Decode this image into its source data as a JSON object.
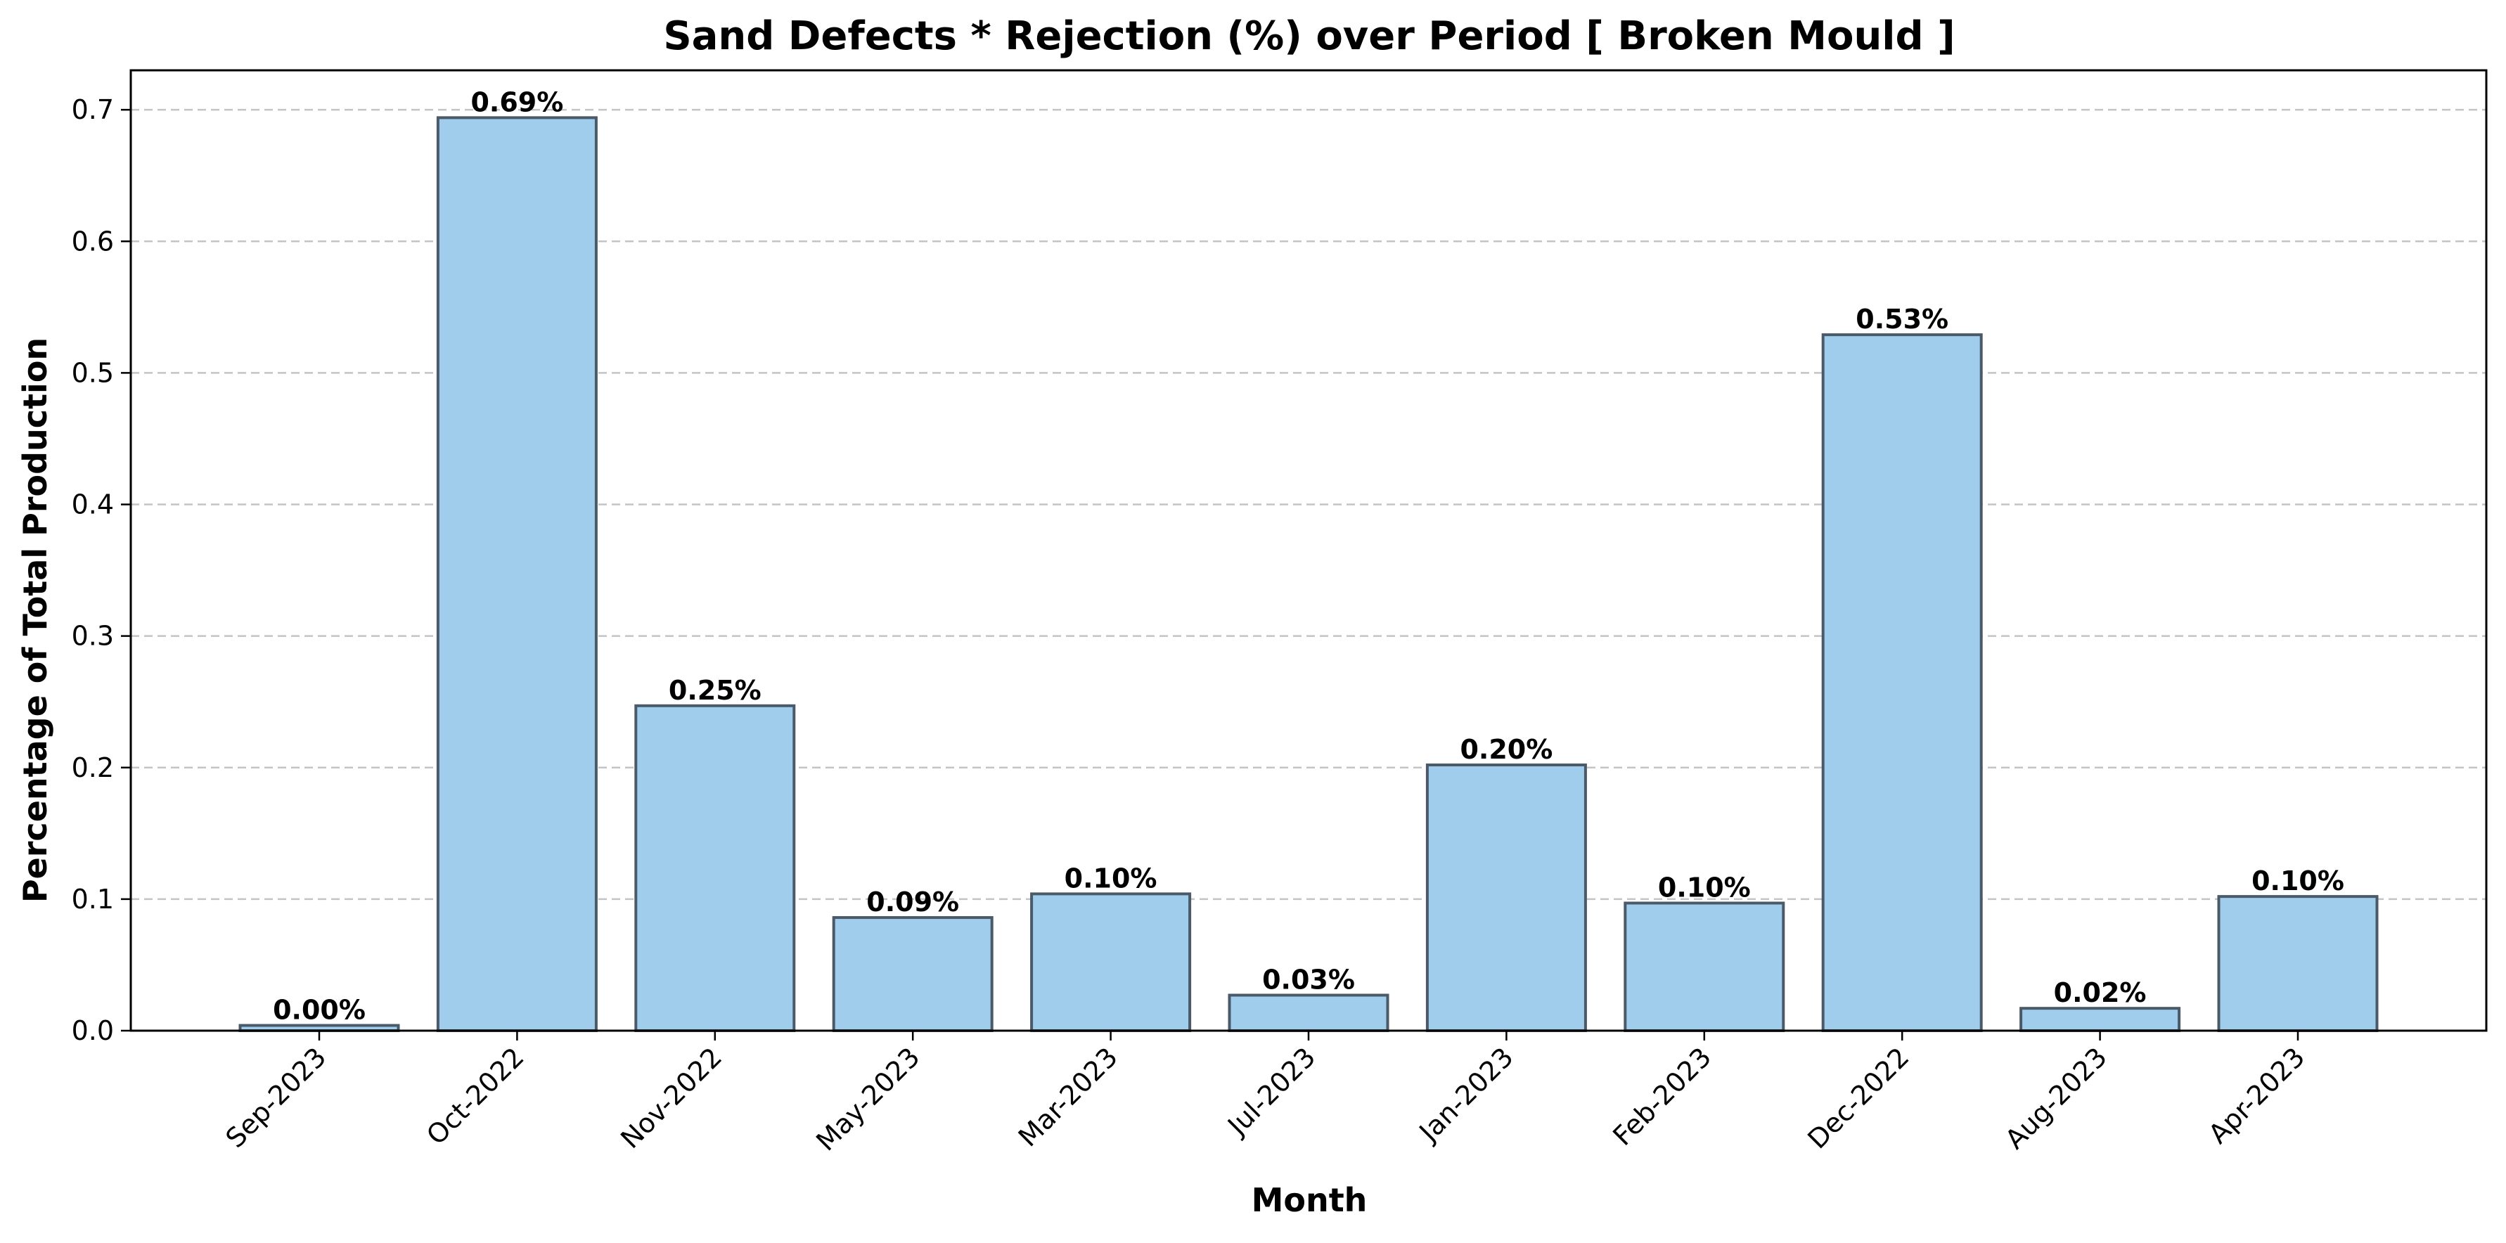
{
  "chart_data": {
    "type": "bar",
    "title": "Sand Defects * Rejection (%) over Period [ Broken Mould ]",
    "xlabel": "Month",
    "ylabel": "Percentage of Total Production",
    "categories": [
      "Sep-2023",
      "Oct-2022",
      "Nov-2022",
      "May-2023",
      "Mar-2023",
      "Jul-2023",
      "Jan-2023",
      "Feb-2023",
      "Dec-2022",
      "Aug-2023",
      "Apr-2023"
    ],
    "values": [
      0.004,
      0.694,
      0.247,
      0.086,
      0.104,
      0.027,
      0.202,
      0.097,
      0.529,
      0.017,
      0.102
    ],
    "data_labels": [
      "0.00%",
      "0.69%",
      "0.25%",
      "0.09%",
      "0.10%",
      "0.03%",
      "0.20%",
      "0.10%",
      "0.53%",
      "0.02%",
      "0.10%"
    ],
    "yticks": [
      "0.0",
      "0.1",
      "0.2",
      "0.3",
      "0.4",
      "0.5",
      "0.6",
      "0.7"
    ],
    "ylim": [
      0,
      0.73
    ],
    "grid": "y-dashed",
    "legend": "none",
    "colors": {
      "bar_fill": "#a0cdec",
      "bar_edge": "#4a5a68",
      "grid": "#c4c4c4",
      "axis": "#000000"
    }
  }
}
